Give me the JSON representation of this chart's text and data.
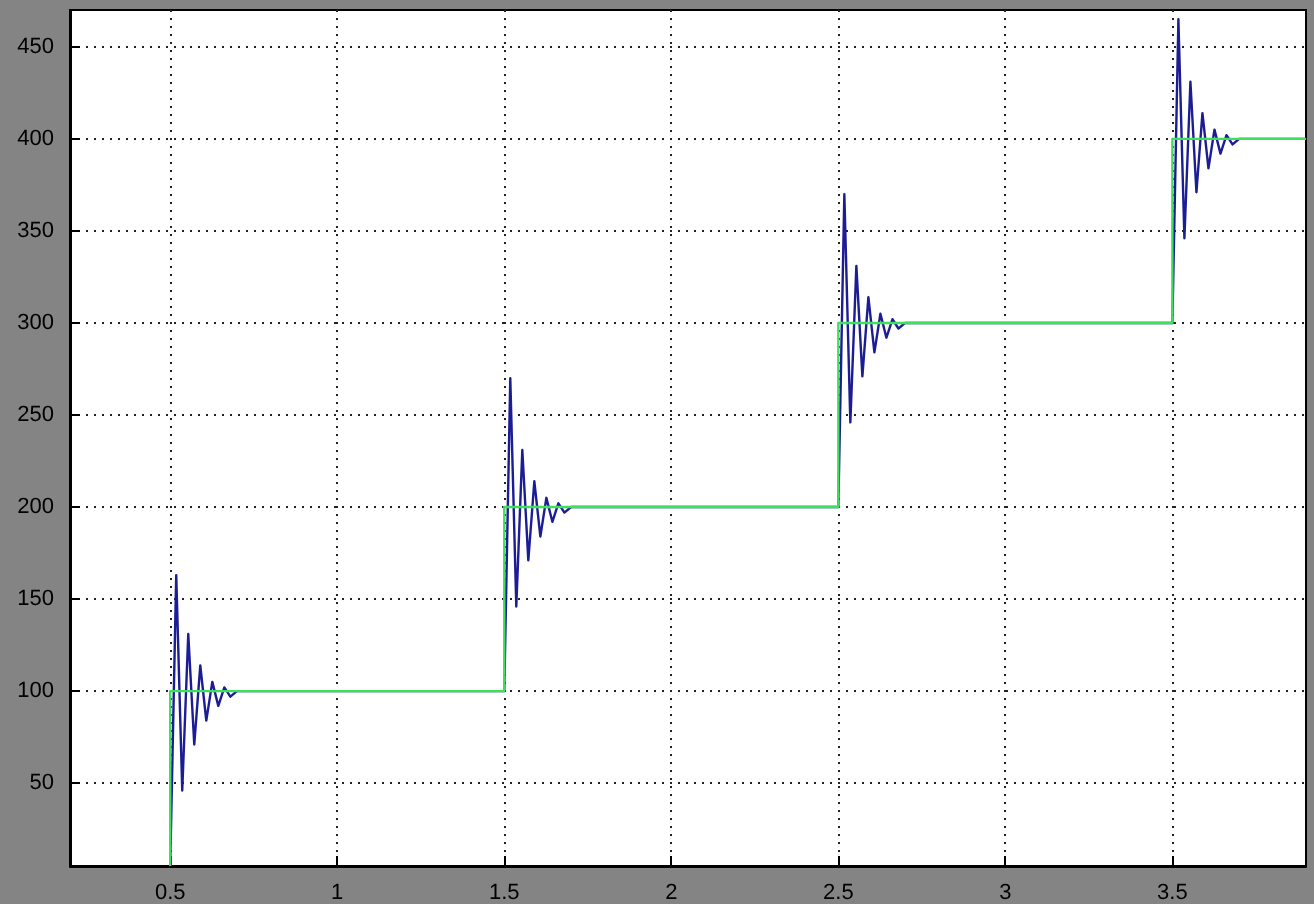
{
  "chart_data": {
    "type": "line",
    "xlim": [
      0.2,
      3.9
    ],
    "ylim": [
      5,
      470
    ],
    "xticks": [
      0.5,
      1,
      1.5,
      2,
      2.5,
      3,
      3.5
    ],
    "yticks": [
      50,
      100,
      150,
      200,
      250,
      300,
      350,
      400,
      450
    ],
    "grid": true,
    "marker": "none",
    "line_style": "solid",
    "series": [
      {
        "color": "#1c1c96",
        "x": [
          0.5,
          0.518,
          0.536,
          0.554,
          0.572,
          0.59,
          0.608,
          0.626,
          0.644,
          0.662,
          0.68,
          0.7,
          1.5,
          1.518,
          1.536,
          1.554,
          1.572,
          1.59,
          1.608,
          1.626,
          1.644,
          1.662,
          1.68,
          1.7,
          2.5,
          2.518,
          2.536,
          2.554,
          2.572,
          2.59,
          2.608,
          2.626,
          2.644,
          2.662,
          2.68,
          2.7,
          3.5,
          3.518,
          3.536,
          3.554,
          3.572,
          3.59,
          3.608,
          3.626,
          3.644,
          3.662,
          3.68,
          3.7,
          3.9
        ],
        "values": [
          5,
          163,
          46,
          131,
          71,
          114,
          84,
          105,
          92,
          102,
          97,
          100,
          100,
          270,
          146,
          231,
          171,
          214,
          184,
          205,
          192,
          202,
          197,
          200,
          200,
          370,
          246,
          331,
          271,
          314,
          284,
          305,
          292,
          302,
          297,
          300,
          300,
          465,
          346,
          431,
          371,
          414,
          384,
          405,
          392,
          402,
          397,
          400,
          400
        ]
      },
      {
        "color": "#3ee05a",
        "x": [
          0.5,
          0.5,
          1.5,
          1.5,
          2.5,
          2.5,
          3.5,
          3.5,
          3.9
        ],
        "values": [
          5,
          100,
          100,
          200,
          200,
          300,
          300,
          400,
          400
        ]
      }
    ]
  }
}
